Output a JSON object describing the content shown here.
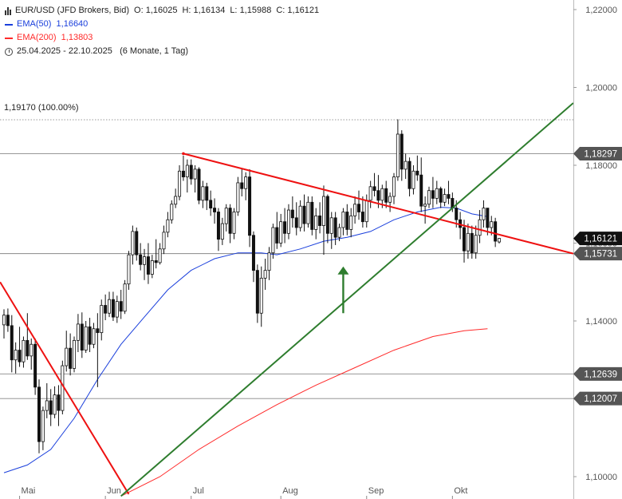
{
  "legend": {
    "instrument": "EUR/USD (JFD Brokers, Bid)",
    "o_label": "O:",
    "o_value": "1,16025",
    "h_label": "H:",
    "h_value": "1,16134",
    "l_label": "L:",
    "l_value": "1,15988",
    "c_label": "C:",
    "c_value": "1,16121",
    "ema50_label": "EMA(50)",
    "ema50_value": "1,16640",
    "ema200_label": "EMA(200)",
    "ema200_value": "1,13803",
    "range": "25.04.2025 - 22.10.2025",
    "period": "(6 Monate, 1 Tag)"
  },
  "fib_label": "1,19170 (100.00%)",
  "colors": {
    "ema50": "#1a3fdc",
    "ema200": "#ff2a2a",
    "trend_red": "#ee1111",
    "trend_green": "#2e7d2e",
    "arrow": "#2e7d2e",
    "candle": "#111111",
    "badge": "#555555"
  },
  "chart_data": {
    "type": "candlestick",
    "y_axis": {
      "min": 1.095,
      "max": 1.225,
      "ticks": [
        "1,22000",
        "1,20000",
        "1,18000",
        "1,16000",
        "1,14000",
        "1,12000",
        "1,10000"
      ],
      "position": "right"
    },
    "x_axis": {
      "labels": [
        "Mai",
        "Jun",
        "Jul",
        "Aug",
        "Sep",
        "Okt"
      ],
      "month_start_index": [
        4,
        26,
        48,
        71,
        93,
        115
      ]
    },
    "candles_ohlc": [
      [
        1.139,
        1.143,
        1.1355,
        1.1415
      ],
      [
        1.1415,
        1.1432,
        1.1372,
        1.1388
      ],
      [
        1.1388,
        1.1415,
        1.1268,
        1.13
      ],
      [
        1.13,
        1.1345,
        1.1265,
        1.1325
      ],
      [
        1.1325,
        1.1385,
        1.1282,
        1.1295
      ],
      [
        1.1295,
        1.136,
        1.128,
        1.135
      ],
      [
        1.135,
        1.142,
        1.13,
        1.131
      ],
      [
        1.131,
        1.1355,
        1.1275,
        1.134
      ],
      [
        1.134,
        1.1355,
        1.121,
        1.123
      ],
      [
        1.123,
        1.125,
        1.106,
        1.109
      ],
      [
        1.109,
        1.118,
        1.1068,
        1.117
      ],
      [
        1.117,
        1.124,
        1.115,
        1.1195
      ],
      [
        1.1195,
        1.1225,
        1.113,
        1.116
      ],
      [
        1.116,
        1.1232,
        1.115,
        1.121
      ],
      [
        1.121,
        1.1235,
        1.113,
        1.117
      ],
      [
        1.117,
        1.1298,
        1.116,
        1.1285
      ],
      [
        1.1285,
        1.1375,
        1.127,
        1.133
      ],
      [
        1.133,
        1.1368,
        1.126,
        1.1278
      ],
      [
        1.1278,
        1.136,
        1.1268,
        1.135
      ],
      [
        1.135,
        1.1418,
        1.132,
        1.1392
      ],
      [
        1.1392,
        1.1422,
        1.1305,
        1.1325
      ],
      [
        1.1325,
        1.14,
        1.1318,
        1.1385
      ],
      [
        1.1385,
        1.1408,
        1.132,
        1.134
      ],
      [
        1.134,
        1.1395,
        1.133,
        1.138
      ],
      [
        1.138,
        1.142,
        1.123,
        1.137
      ],
      [
        1.137,
        1.1455,
        1.135,
        1.144
      ],
      [
        1.144,
        1.1468,
        1.1402,
        1.142
      ],
      [
        1.142,
        1.1475,
        1.141,
        1.1455
      ],
      [
        1.1455,
        1.1475,
        1.14,
        1.141
      ],
      [
        1.141,
        1.1465,
        1.1395,
        1.145
      ],
      [
        1.145,
        1.148,
        1.1405,
        1.1425
      ],
      [
        1.1425,
        1.1505,
        1.1418,
        1.1495
      ],
      [
        1.1495,
        1.158,
        1.148,
        1.157
      ],
      [
        1.157,
        1.1645,
        1.1545,
        1.163
      ],
      [
        1.163,
        1.164,
        1.1555,
        1.157
      ],
      [
        1.157,
        1.16,
        1.153,
        1.1545
      ],
      [
        1.1545,
        1.1585,
        1.1505,
        1.1565
      ],
      [
        1.1565,
        1.16,
        1.1495,
        1.152
      ],
      [
        1.152,
        1.157,
        1.151,
        1.1555
      ],
      [
        1.1555,
        1.161,
        1.1535,
        1.155
      ],
      [
        1.155,
        1.16,
        1.1545,
        1.1585
      ],
      [
        1.1585,
        1.1645,
        1.1572,
        1.1628
      ],
      [
        1.1628,
        1.168,
        1.1615,
        1.166
      ],
      [
        1.166,
        1.171,
        1.165,
        1.17
      ],
      [
        1.17,
        1.174,
        1.169,
        1.172
      ],
      [
        1.172,
        1.18,
        1.171,
        1.1785
      ],
      [
        1.1785,
        1.1825,
        1.176,
        1.177
      ],
      [
        1.177,
        1.1815,
        1.173,
        1.18
      ],
      [
        1.18,
        1.1815,
        1.175,
        1.1765
      ],
      [
        1.1765,
        1.18,
        1.173,
        1.179
      ],
      [
        1.179,
        1.1795,
        1.17,
        1.171
      ],
      [
        1.171,
        1.176,
        1.169,
        1.1745
      ],
      [
        1.1745,
        1.1755,
        1.1685,
        1.171
      ],
      [
        1.171,
        1.1735,
        1.167,
        1.169
      ],
      [
        1.169,
        1.1715,
        1.165,
        1.168
      ],
      [
        1.168,
        1.169,
        1.158,
        1.161
      ],
      [
        1.161,
        1.1665,
        1.1595,
        1.165
      ],
      [
        1.165,
        1.17,
        1.163,
        1.169
      ],
      [
        1.169,
        1.17,
        1.16,
        1.1625
      ],
      [
        1.1625,
        1.169,
        1.161,
        1.168
      ],
      [
        1.168,
        1.177,
        1.167,
        1.1755
      ],
      [
        1.1755,
        1.179,
        1.172,
        1.174
      ],
      [
        1.174,
        1.1782,
        1.171,
        1.177
      ],
      [
        1.177,
        1.179,
        1.159,
        1.162
      ],
      [
        1.162,
        1.163,
        1.15,
        1.153
      ],
      [
        1.153,
        1.1545,
        1.1395,
        1.142
      ],
      [
        1.142,
        1.154,
        1.1385,
        1.151
      ],
      [
        1.151,
        1.156,
        1.148,
        1.153
      ],
      [
        1.153,
        1.159,
        1.1505,
        1.1575
      ],
      [
        1.1575,
        1.165,
        1.156,
        1.164
      ],
      [
        1.164,
        1.168,
        1.1585,
        1.16
      ],
      [
        1.16,
        1.1675,
        1.159,
        1.1655
      ],
      [
        1.1655,
        1.169,
        1.16,
        1.1625
      ],
      [
        1.1625,
        1.17,
        1.161,
        1.1685
      ],
      [
        1.1685,
        1.172,
        1.164,
        1.1665
      ],
      [
        1.1665,
        1.1705,
        1.162,
        1.164
      ],
      [
        1.164,
        1.171,
        1.163,
        1.1695
      ],
      [
        1.1695,
        1.1725,
        1.163,
        1.165
      ],
      [
        1.165,
        1.172,
        1.164,
        1.1705
      ],
      [
        1.1705,
        1.172,
        1.162,
        1.1635
      ],
      [
        1.1635,
        1.169,
        1.161,
        1.167
      ],
      [
        1.167,
        1.1705,
        1.1625,
        1.1645
      ],
      [
        1.1645,
        1.1748,
        1.157,
        1.172
      ],
      [
        1.172,
        1.1725,
        1.16,
        1.1625
      ],
      [
        1.1625,
        1.168,
        1.1585,
        1.1665
      ],
      [
        1.1665,
        1.168,
        1.1595,
        1.1615
      ],
      [
        1.1615,
        1.165,
        1.1605,
        1.164
      ],
      [
        1.164,
        1.169,
        1.162,
        1.168
      ],
      [
        1.168,
        1.17,
        1.162,
        1.1635
      ],
      [
        1.1635,
        1.169,
        1.1615,
        1.167
      ],
      [
        1.167,
        1.172,
        1.165,
        1.17
      ],
      [
        1.17,
        1.1735,
        1.166,
        1.168
      ],
      [
        1.168,
        1.172,
        1.164,
        1.1655
      ],
      [
        1.1655,
        1.1725,
        1.164,
        1.171
      ],
      [
        1.171,
        1.176,
        1.169,
        1.1745
      ],
      [
        1.1745,
        1.178,
        1.172,
        1.1735
      ],
      [
        1.1735,
        1.1775,
        1.169,
        1.171
      ],
      [
        1.171,
        1.175,
        1.169,
        1.174
      ],
      [
        1.174,
        1.176,
        1.169,
        1.1705
      ],
      [
        1.1705,
        1.173,
        1.168,
        1.172
      ],
      [
        1.172,
        1.178,
        1.17,
        1.177
      ],
      [
        1.177,
        1.1918,
        1.176,
        1.188
      ],
      [
        1.188,
        1.189,
        1.176,
        1.179
      ],
      [
        1.179,
        1.183,
        1.1765,
        1.181
      ],
      [
        1.181,
        1.182,
        1.172,
        1.174
      ],
      [
        1.174,
        1.18,
        1.1725,
        1.1785
      ],
      [
        1.1785,
        1.1825,
        1.176,
        1.1775
      ],
      [
        1.1775,
        1.182,
        1.168,
        1.1695
      ],
      [
        1.1695,
        1.172,
        1.165,
        1.17
      ],
      [
        1.17,
        1.1745,
        1.169,
        1.1735
      ],
      [
        1.1735,
        1.177,
        1.169,
        1.1715
      ],
      [
        1.1715,
        1.176,
        1.17,
        1.174
      ],
      [
        1.174,
        1.1745,
        1.169,
        1.1705
      ],
      [
        1.1705,
        1.174,
        1.1695,
        1.1725
      ],
      [
        1.1725,
        1.176,
        1.17,
        1.1715
      ],
      [
        1.1715,
        1.173,
        1.168,
        1.169
      ],
      [
        1.169,
        1.171,
        1.164,
        1.166
      ],
      [
        1.166,
        1.168,
        1.161,
        1.164
      ],
      [
        1.164,
        1.166,
        1.155,
        1.158
      ],
      [
        1.158,
        1.165,
        1.156,
        1.1625
      ],
      [
        1.1625,
        1.1645,
        1.156,
        1.1575
      ],
      [
        1.1575,
        1.1645,
        1.156,
        1.162
      ],
      [
        1.162,
        1.1685,
        1.16,
        1.166
      ],
      [
        1.166,
        1.171,
        1.164,
        1.169
      ],
      [
        1.169,
        1.169,
        1.162,
        1.164
      ],
      [
        1.164,
        1.167,
        1.162,
        1.1655
      ],
      [
        1.1655,
        1.1665,
        1.159,
        1.1605
      ],
      [
        1.1603,
        1.1613,
        1.1599,
        1.1612
      ]
    ],
    "ema50": [
      [
        0,
        1.101
      ],
      [
        6,
        1.103
      ],
      [
        12,
        1.107
      ],
      [
        18,
        1.115
      ],
      [
        24,
        1.125
      ],
      [
        30,
        1.134
      ],
      [
        36,
        1.141
      ],
      [
        42,
        1.148
      ],
      [
        48,
        1.153
      ],
      [
        54,
        1.156
      ],
      [
        60,
        1.1575
      ],
      [
        66,
        1.1575
      ],
      [
        70,
        1.157
      ],
      [
        76,
        1.1585
      ],
      [
        82,
        1.1605
      ],
      [
        88,
        1.1615
      ],
      [
        94,
        1.163
      ],
      [
        100,
        1.166
      ],
      [
        106,
        1.168
      ],
      [
        112,
        1.1692
      ],
      [
        116,
        1.169
      ],
      [
        120,
        1.1675
      ],
      [
        124,
        1.1668
      ]
    ],
    "ema200": [
      [
        30,
        1.095
      ],
      [
        40,
        1.1
      ],
      [
        50,
        1.107
      ],
      [
        60,
        1.113
      ],
      [
        70,
        1.1185
      ],
      [
        80,
        1.1235
      ],
      [
        90,
        1.128
      ],
      [
        100,
        1.1325
      ],
      [
        110,
        1.136
      ],
      [
        118,
        1.1375
      ],
      [
        124,
        1.138
      ]
    ],
    "horizontal_lines": [
      {
        "value": 1.1917,
        "style": "dotted",
        "label": "1,19170 (100.00%)"
      },
      {
        "value": 1.18297,
        "style": "solid",
        "badge": "1,18297",
        "badge_color": "#555555"
      },
      {
        "value": 1.15731,
        "style": "solid",
        "badge": "1,15731",
        "badge_color": "#555555"
      },
      {
        "value": 1.12639,
        "style": "solid",
        "badge": "1,12639",
        "badge_color": "#555555"
      },
      {
        "value": 1.12007,
        "style": "solid",
        "badge": "1,12007",
        "badge_color": "#555555"
      }
    ],
    "last_price": {
      "value": 1.16121,
      "badge": "1,16121",
      "badge_color": "#111111"
    },
    "trendlines": [
      {
        "color": "red",
        "points": [
          [
            -1,
            1.15
          ],
          [
            32,
            1.0955
          ]
        ]
      },
      {
        "color": "red",
        "points": [
          [
            46,
            1.183
          ],
          [
            146,
            1.1573
          ]
        ]
      },
      {
        "color": "green",
        "points": [
          [
            30,
            1.095
          ],
          [
            146,
            1.196
          ]
        ]
      }
    ],
    "arrow": {
      "index": 87,
      "from": 1.142,
      "to": 1.154
    }
  }
}
